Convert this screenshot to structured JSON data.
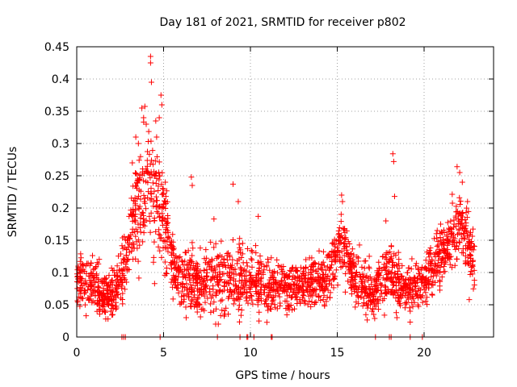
{
  "chart_data": {
    "type": "scatter",
    "title": "Day 181 of 2021, SRMTID for receiver p802",
    "xlabel": "GPS time / hours",
    "ylabel": "SRMTID / TECUs",
    "xlim": [
      0,
      24
    ],
    "ylim": [
      0,
      0.45
    ],
    "xticks": [
      0,
      5,
      10,
      15,
      20
    ],
    "xtick_labels": [
      "0",
      "5",
      "10",
      "15",
      "20"
    ],
    "yticks": [
      0,
      0.05,
      0.1,
      0.15,
      0.2,
      0.25,
      0.3,
      0.35,
      0.4,
      0.45
    ],
    "ytick_labels": [
      "0",
      "0.05",
      "0.1",
      "0.15",
      "0.2",
      "0.25",
      "0.3",
      "0.35",
      "0.4",
      "0.45"
    ],
    "grid": true,
    "marker": "+",
    "color": "#ff0000",
    "x_end": 22.9,
    "activity_profile": [
      {
        "hour": 0.0,
        "base": 0.085,
        "spread": 0.035
      },
      {
        "hour": 1.0,
        "base": 0.08,
        "spread": 0.035
      },
      {
        "hour": 2.0,
        "base": 0.06,
        "spread": 0.035
      },
      {
        "hour": 2.8,
        "base": 0.11,
        "spread": 0.04
      },
      {
        "hour": 3.3,
        "base": 0.19,
        "spread": 0.07
      },
      {
        "hour": 4.0,
        "base": 0.24,
        "spread": 0.09
      },
      {
        "hour": 4.5,
        "base": 0.25,
        "spread": 0.1
      },
      {
        "hour": 5.0,
        "base": 0.19,
        "spread": 0.07
      },
      {
        "hour": 5.6,
        "base": 0.1,
        "spread": 0.04
      },
      {
        "hour": 7.0,
        "base": 0.08,
        "spread": 0.045
      },
      {
        "hour": 9.0,
        "base": 0.09,
        "spread": 0.05
      },
      {
        "hour": 10.0,
        "base": 0.09,
        "spread": 0.045
      },
      {
        "hour": 11.0,
        "base": 0.075,
        "spread": 0.035
      },
      {
        "hour": 13.0,
        "base": 0.085,
        "spread": 0.035
      },
      {
        "hour": 14.5,
        "base": 0.085,
        "spread": 0.04
      },
      {
        "hour": 15.2,
        "base": 0.15,
        "spread": 0.045
      },
      {
        "hour": 15.8,
        "base": 0.1,
        "spread": 0.04
      },
      {
        "hour": 17.0,
        "base": 0.065,
        "spread": 0.035
      },
      {
        "hour": 18.0,
        "base": 0.1,
        "spread": 0.04
      },
      {
        "hour": 19.0,
        "base": 0.075,
        "spread": 0.035
      },
      {
        "hour": 20.0,
        "base": 0.085,
        "spread": 0.035
      },
      {
        "hour": 21.0,
        "base": 0.13,
        "spread": 0.045
      },
      {
        "hour": 22.0,
        "base": 0.18,
        "spread": 0.05
      },
      {
        "hour": 22.9,
        "base": 0.12,
        "spread": 0.04
      }
    ],
    "highlights": [
      {
        "x": 4.25,
        "y": 0.425
      },
      {
        "x": 4.25,
        "y": 0.435
      },
      {
        "x": 4.3,
        "y": 0.395
      },
      {
        "x": 4.85,
        "y": 0.375
      },
      {
        "x": 4.9,
        "y": 0.36
      },
      {
        "x": 4.75,
        "y": 0.34
      },
      {
        "x": 3.75,
        "y": 0.355
      },
      {
        "x": 3.85,
        "y": 0.34
      },
      {
        "x": 4.0,
        "y": 0.33
      },
      {
        "x": 3.4,
        "y": 0.31
      },
      {
        "x": 3.55,
        "y": 0.3
      },
      {
        "x": 3.2,
        "y": 0.27
      },
      {
        "x": 4.55,
        "y": 0.335
      },
      {
        "x": 4.6,
        "y": 0.31
      },
      {
        "x": 5.1,
        "y": 0.24
      },
      {
        "x": 6.6,
        "y": 0.248
      },
      {
        "x": 6.65,
        "y": 0.235
      },
      {
        "x": 9.0,
        "y": 0.237
      },
      {
        "x": 9.3,
        "y": 0.21
      },
      {
        "x": 10.45,
        "y": 0.187
      },
      {
        "x": 7.9,
        "y": 0.183
      },
      {
        "x": 15.25,
        "y": 0.22
      },
      {
        "x": 15.3,
        "y": 0.21
      },
      {
        "x": 18.2,
        "y": 0.284
      },
      {
        "x": 18.25,
        "y": 0.272
      },
      {
        "x": 18.3,
        "y": 0.218
      },
      {
        "x": 17.8,
        "y": 0.18
      },
      {
        "x": 21.9,
        "y": 0.264
      },
      {
        "x": 22.05,
        "y": 0.255
      },
      {
        "x": 22.2,
        "y": 0.24
      },
      {
        "x": 22.5,
        "y": 0.21
      },
      {
        "x": 1.8,
        "y": 0.028
      },
      {
        "x": 6.3,
        "y": 0.03
      },
      {
        "x": 8.0,
        "y": 0.02
      },
      {
        "x": 8.15,
        "y": 0.02
      },
      {
        "x": 17.1,
        "y": 0.035
      },
      {
        "x": 19.2,
        "y": 0.04
      },
      {
        "x": 22.6,
        "y": 0.058
      }
    ],
    "zero_points_x": [
      2.6,
      2.7,
      2.8,
      4.8,
      8.1,
      9.4,
      9.8,
      9.85,
      10.2,
      11.2,
      11.25,
      17.2,
      18.0,
      18.1,
      19.2,
      19.9
    ]
  }
}
